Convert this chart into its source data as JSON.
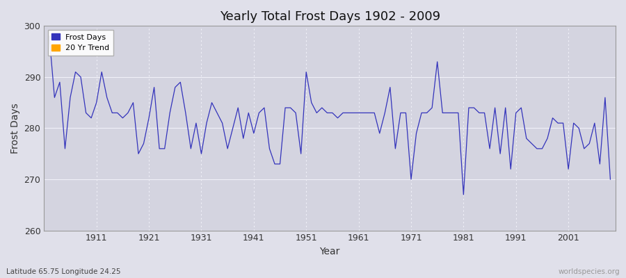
{
  "title": "Yearly Total Frost Days 1902 - 2009",
  "xlabel": "Year",
  "ylabel": "Frost Days",
  "xlim": [
    1901,
    2010
  ],
  "ylim": [
    260,
    300
  ],
  "yticks": [
    260,
    270,
    280,
    290,
    300
  ],
  "xticks": [
    1911,
    1921,
    1931,
    1941,
    1951,
    1961,
    1971,
    1981,
    1991,
    2001
  ],
  "line_color": "#3333bb",
  "trend_color": "#ffa500",
  "bg_color": "#e0e0ea",
  "inner_bg_color": "#d4d4e0",
  "grid_color": "#f0f0f8",
  "subtitle": "Latitude 65.75 Longitude 24.25",
  "watermark": "worldspecies.org",
  "years": [
    1902,
    1903,
    1904,
    1905,
    1906,
    1907,
    1908,
    1909,
    1910,
    1911,
    1912,
    1913,
    1914,
    1915,
    1916,
    1917,
    1918,
    1919,
    1920,
    1921,
    1922,
    1923,
    1924,
    1925,
    1926,
    1927,
    1928,
    1929,
    1930,
    1931,
    1932,
    1933,
    1934,
    1935,
    1936,
    1937,
    1938,
    1939,
    1940,
    1941,
    1942,
    1943,
    1944,
    1945,
    1946,
    1947,
    1948,
    1949,
    1950,
    1951,
    1952,
    1953,
    1954,
    1955,
    1956,
    1957,
    1958,
    1959,
    1960,
    1961,
    1962,
    1963,
    1964,
    1965,
    1966,
    1967,
    1968,
    1969,
    1970,
    1971,
    1972,
    1973,
    1974,
    1975,
    1976,
    1977,
    1978,
    1979,
    1980,
    1981,
    1982,
    1983,
    1984,
    1985,
    1986,
    1987,
    1988,
    1989,
    1990,
    1991,
    1992,
    1993,
    1994,
    1995,
    1996,
    1997,
    1998,
    1999,
    2000,
    2001,
    2002,
    2003,
    2004,
    2005,
    2006,
    2007,
    2008,
    2009
  ],
  "frost_days": [
    298,
    286,
    289,
    276,
    286,
    291,
    290,
    283,
    282,
    285,
    291,
    286,
    283,
    283,
    282,
    283,
    285,
    275,
    277,
    282,
    288,
    276,
    276,
    283,
    288,
    289,
    283,
    276,
    281,
    275,
    281,
    285,
    283,
    281,
    276,
    280,
    284,
    278,
    283,
    279,
    283,
    284,
    276,
    273,
    273,
    284,
    284,
    283,
    275,
    291,
    285,
    283,
    284,
    283,
    283,
    282,
    283,
    283,
    283,
    283,
    283,
    283,
    283,
    279,
    283,
    288,
    276,
    283,
    283,
    270,
    279,
    283,
    283,
    284,
    293,
    283,
    283,
    283,
    283,
    267,
    284,
    284,
    283,
    283,
    276,
    284,
    275,
    284,
    272,
    283,
    284,
    278,
    277,
    276,
    276,
    278,
    282,
    281,
    281,
    272,
    281,
    280,
    276,
    277,
    281,
    273,
    286,
    270
  ]
}
